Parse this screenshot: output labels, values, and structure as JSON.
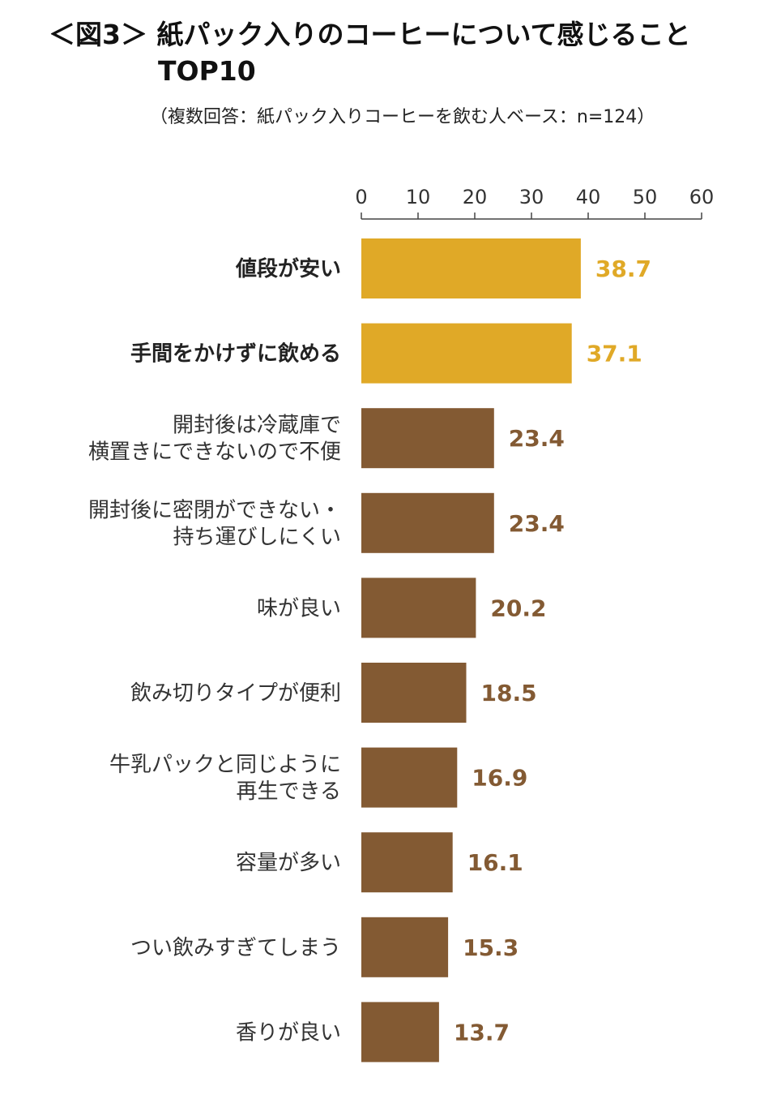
{
  "title": {
    "line1": "＜図3＞ 紙パック入りのコーヒーについて感じること",
    "line2": "TOP10"
  },
  "subtitle": "（複数回答：紙パック入りコーヒーを飲む人ベース：n=124）",
  "colors": {
    "highlight": "#E0A927",
    "normal": "#835A33",
    "axis": "#444444"
  },
  "chart_data": {
    "type": "bar",
    "orientation": "horizontal",
    "xlim": [
      0,
      60
    ],
    "xticks": [
      0,
      10,
      20,
      30,
      40,
      50,
      60
    ],
    "grid": false,
    "categories": [
      [
        "値段が安い"
      ],
      [
        "手間をかけずに飲める"
      ],
      [
        "開封後は冷蔵庫で",
        "横置きにできないので不便"
      ],
      [
        "開封後に密閉ができない・",
        "持ち運びしにくい"
      ],
      [
        "味が良い"
      ],
      [
        "飲み切りタイプが便利"
      ],
      [
        "牛乳パックと同じように",
        "再生できる"
      ],
      [
        "容量が多い"
      ],
      [
        "つい飲みすぎてしまう"
      ],
      [
        "香りが良い"
      ]
    ],
    "values": [
      38.7,
      37.1,
      23.4,
      23.4,
      20.2,
      18.5,
      16.9,
      16.1,
      15.3,
      13.7
    ],
    "value_labels": [
      "38.7",
      "37.1",
      "23.4",
      "23.4",
      "20.2",
      "18.5",
      "16.9",
      "16.1",
      "15.3",
      "13.7"
    ],
    "highlighted": [
      true,
      true,
      false,
      false,
      false,
      false,
      false,
      false,
      false,
      false
    ]
  }
}
